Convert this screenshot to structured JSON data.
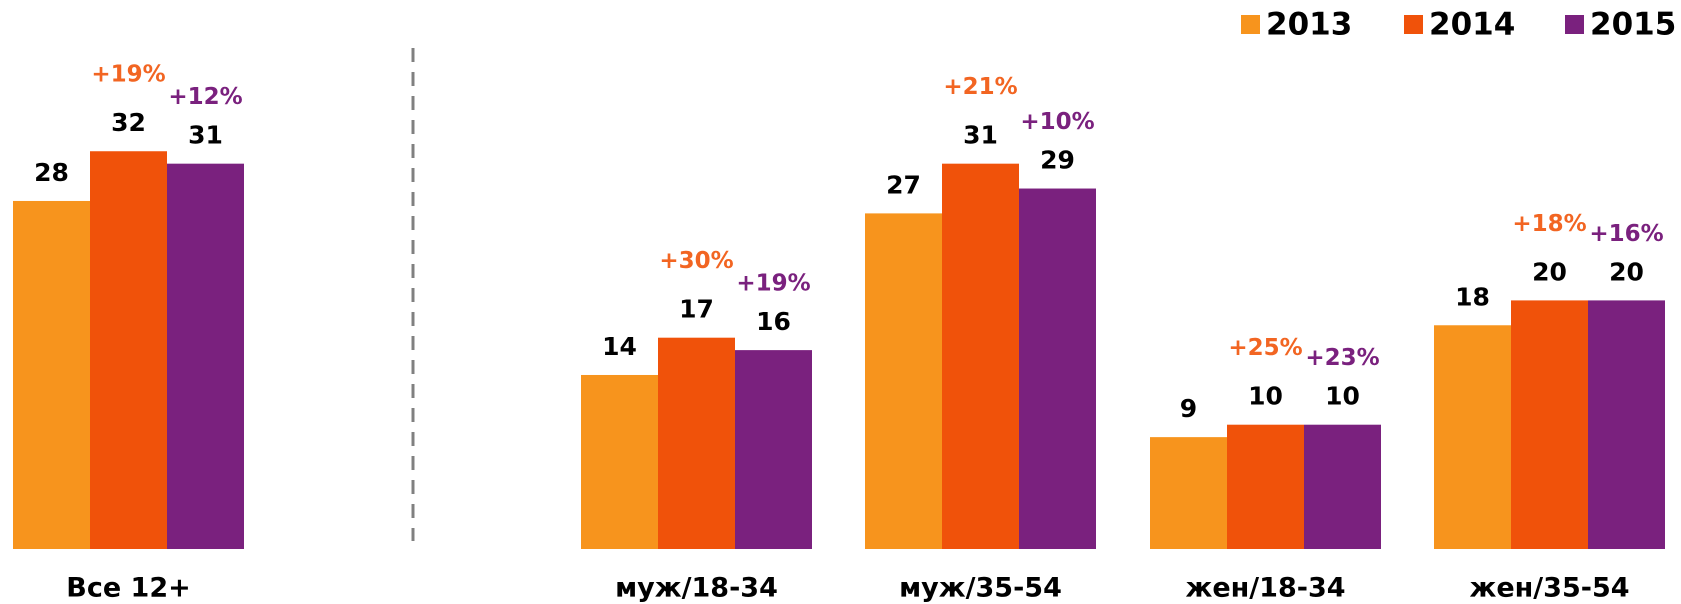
{
  "chart_data": {
    "type": "bar",
    "categories": [
      "Все 12+",
      "муж/18-34",
      "муж/35-54",
      "жен/18-34",
      "жен/35-54"
    ],
    "series": [
      {
        "name": "2013",
        "color": "#f7941d",
        "values": [
          28,
          14,
          27,
          9,
          18
        ]
      },
      {
        "name": "2014",
        "color": "#f0520a",
        "values": [
          32,
          17,
          31,
          10,
          20
        ],
        "change_labels": [
          "+19%",
          "+30%",
          "+21%",
          "+25%",
          "+18%"
        ],
        "change_color": "#f26522"
      },
      {
        "name": "2015",
        "color": "#7a217e",
        "values": [
          31,
          16,
          29,
          10,
          20
        ],
        "change_labels": [
          "+12%",
          "+19%",
          "+10%",
          "+23%",
          "+16%"
        ],
        "change_color": "#7a217e"
      }
    ],
    "legend": "top-right",
    "grid": false
  }
}
